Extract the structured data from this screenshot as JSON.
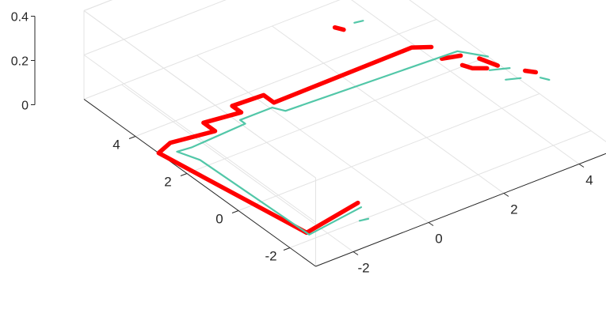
{
  "chart_data": {
    "type": "scatter",
    "projection": "3d",
    "title": "",
    "xlabel": "",
    "ylabel": "",
    "zlabel": "",
    "grid": true,
    "xlim": [
      -3,
      5
    ],
    "ylim": [
      -3,
      6
    ],
    "zlim": [
      0,
      0.4
    ],
    "x_ticks": [
      -2,
      0,
      2,
      4
    ],
    "y_ticks": [
      -2,
      0,
      2,
      4
    ],
    "z_ticks": [
      0,
      0.2,
      0.4
    ],
    "x_tick_labels": [
      "-2",
      "0",
      "2",
      "4"
    ],
    "y_tick_labels": [
      "-2",
      "0",
      "2",
      "4"
    ],
    "z_tick_labels": [
      "0",
      "0.2",
      "0.4"
    ],
    "series": [
      {
        "color": "#ff0000",
        "style": "thick",
        "segments": [
          [
            [
              -0.75,
              -1.35
            ],
            [
              -2.35,
              -1.7
            ],
            [
              -3.0,
              3.1
            ],
            [
              -2.55,
              3.3
            ],
            [
              -1.5,
              3.1
            ],
            [
              -1.5,
              3.55
            ],
            [
              -0.6,
              3.4
            ],
            [
              -0.6,
              3.75
            ],
            [
              0.2,
              3.7
            ],
            [
              0.2,
              3.3
            ],
            [
              3.9,
              3.35
            ],
            [
              4.25,
              3.1
            ]
          ],
          [
            [
              3.15,
              4.9
            ],
            [
              3.05,
              5.1
            ]
          ],
          [
            [
              4.15,
              2.55
            ],
            [
              4.55,
              2.4
            ]
          ],
          [
            [
              4.35,
              2.05
            ],
            [
              4.45,
              1.8
            ],
            [
              4.7,
              1.6
            ]
          ],
          [
            [
              4.8,
              2.05
            ],
            [
              4.95,
              1.55
            ]
          ],
          [
            [
              5.3,
              1.0
            ],
            [
              5.45,
              0.8
            ]
          ]
        ]
      },
      {
        "color": "#52c7a8",
        "style": "thin",
        "segments": [
          [
            [
              -0.8,
              -1.55
            ],
            [
              -2.35,
              -1.8
            ],
            [
              -2.45,
              2.3
            ],
            [
              -2.65,
              2.9
            ],
            [
              -2.3,
              2.85
            ],
            [
              -0.8,
              2.95
            ],
            [
              -0.8,
              3.15
            ],
            [
              0.05,
              3.15
            ],
            [
              0.2,
              2.85
            ],
            [
              4.6,
              2.6
            ],
            [
              5.0,
              2.0
            ]
          ],
          [
            [
              4.7,
              1.5
            ],
            [
              5.1,
              1.3
            ]
          ],
          [
            [
              4.75,
              0.95
            ],
            [
              5.05,
              0.8
            ]
          ],
          [
            [
              5.4,
              0.55
            ],
            [
              5.5,
              0.35
            ]
          ],
          [
            [
              -1.15,
              -2.0
            ],
            [
              -0.95,
              -2.05
            ]
          ],
          [
            [
              3.5,
              5.0
            ],
            [
              3.7,
              4.95
            ]
          ]
        ]
      }
    ]
  }
}
